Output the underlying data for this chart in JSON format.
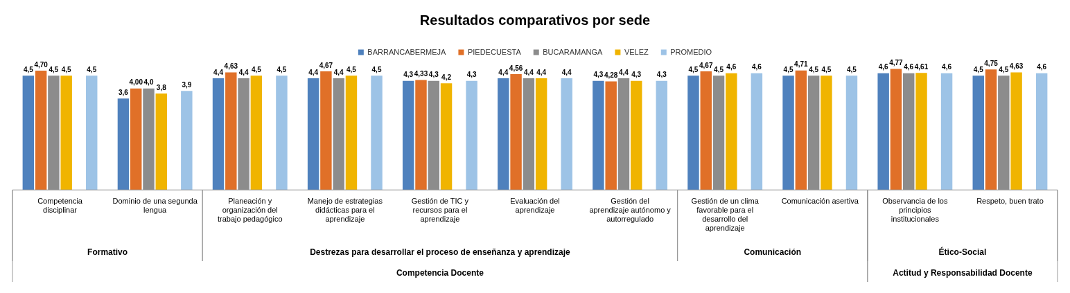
{
  "chart_data": {
    "type": "bar",
    "title": "Resultados comparativos por sede",
    "categories": [
      "Competencia disciplinar",
      "Dominio de una segunda lengua",
      "Planeación y organización del trabajo pedagógico",
      "Manejo de estrategias didácticas para el aprendizaje",
      "Gestión de TIC y recursos para el aprendizaje",
      "Evaluación del aprendizaje",
      "Gestión del aprendizaje autónomo y autorregulado",
      "Gestión de un clima favorable para el desarrollo del aprendizaje",
      "Comunicación asertiva",
      "Observancia de los principios institucionales",
      "Respeto, buen trato"
    ],
    "series": [
      {
        "name": "BARRANCABERMEJA",
        "color": "#4f81bd",
        "values": [
          4.5,
          3.6,
          4.4,
          4.4,
          4.3,
          4.4,
          4.3,
          4.5,
          4.5,
          4.6,
          4.5
        ],
        "value_labels": [
          "4,5",
          "3,6",
          "4,4",
          "4,4",
          "4,3",
          "4,4",
          "4,3",
          "4,5",
          "4,5",
          "4,6",
          "4,5"
        ]
      },
      {
        "name": "PIEDECUESTA",
        "color": "#e07028",
        "values": [
          4.7,
          4.0,
          4.63,
          4.67,
          4.33,
          4.56,
          4.28,
          4.67,
          4.71,
          4.77,
          4.75
        ],
        "value_labels": [
          "4,70",
          "4,00",
          "4,63",
          "4,67",
          "4,33",
          "4,56",
          "4,28",
          "4,67",
          "4,71",
          "4,77",
          "4,75"
        ]
      },
      {
        "name": "BUCARAMANGA",
        "color": "#8c8c8c",
        "values": [
          4.5,
          4.0,
          4.4,
          4.4,
          4.3,
          4.4,
          4.4,
          4.5,
          4.5,
          4.6,
          4.5
        ],
        "value_labels": [
          "4,5",
          "4,0",
          "4,4",
          "4,4",
          "4,3",
          "4,4",
          "4,4",
          "4,5",
          "4,5",
          "4,6",
          "4,5"
        ]
      },
      {
        "name": "VELEZ",
        "color": "#f0b400",
        "values": [
          4.5,
          3.8,
          4.5,
          4.5,
          4.2,
          4.4,
          4.3,
          4.6,
          4.5,
          4.61,
          4.63
        ],
        "value_labels": [
          "4,5",
          "3,8",
          "4,5",
          "4,5",
          "4,2",
          "4,4",
          "4,3",
          "4,6",
          "4,5",
          "4,61",
          "4,63"
        ]
      },
      {
        "color": "#70a040",
        "values": [
          null,
          null,
          null,
          null,
          null,
          null,
          null,
          null,
          null,
          null,
          null
        ]
      },
      {
        "name": "PROMEDIO",
        "color": "#9dc3e6",
        "values": [
          4.5,
          3.9,
          4.5,
          4.5,
          4.3,
          4.4,
          4.3,
          4.6,
          4.5,
          4.6,
          4.6
        ],
        "value_labels": [
          "4,5",
          "3,9",
          "4,5",
          "4,5",
          "4,3",
          "4,4",
          "4,3",
          "4,6",
          "4,5",
          "4,6",
          "4,6"
        ]
      }
    ],
    "annotations": [
      "Formativo",
      "Destrezas para desarrollar el proceso de enseñanza y aprendizaje",
      "Comunicación",
      "Ético-Social",
      "Competencia Docente",
      "Actitud y Responsabilidad Docente"
    ],
    "legend": "top",
    "grid": false
  }
}
